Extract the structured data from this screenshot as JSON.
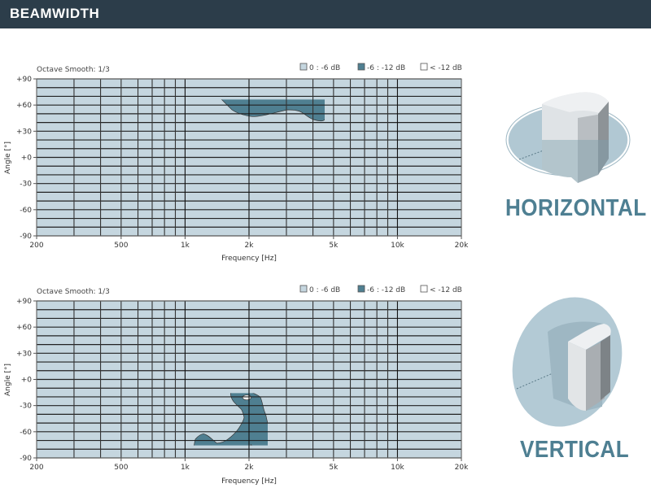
{
  "header": {
    "title": "BEAMWIDTH"
  },
  "colors": {
    "header_bg": "#2c3d4a",
    "level_0_6": "#c5d6df",
    "level_6_12": "#4f7f91",
    "level_below_12": "#ffffff",
    "accent_text": "#4e7f92"
  },
  "chart_data": [
    {
      "type": "heatmap",
      "name": "horizontal",
      "subtitle": "Octave Smooth: 1/3",
      "xlabel": "Frequency [Hz]",
      "ylabel": "Angle [°]",
      "xscale": "log",
      "xlim": [
        200,
        20000
      ],
      "ylim": [
        -90,
        90
      ],
      "x_gridlines": [
        200,
        300,
        400,
        500,
        600,
        700,
        800,
        900,
        1000,
        2000,
        3000,
        4000,
        5000,
        6000,
        7000,
        8000,
        9000,
        10000,
        20000
      ],
      "y_gridlines_step": 10,
      "x_ticks": [
        {
          "value": 200,
          "label": "200"
        },
        {
          "value": 500,
          "label": "500"
        },
        {
          "value": 1000,
          "label": "1k"
        },
        {
          "value": 2000,
          "label": "2k"
        },
        {
          "value": 5000,
          "label": "5k"
        },
        {
          "value": 10000,
          "label": "10k"
        },
        {
          "value": 20000,
          "label": "20k"
        }
      ],
      "y_ticks": [
        {
          "value": 90,
          "label": "+90"
        },
        {
          "value": 60,
          "label": "+60"
        },
        {
          "value": 30,
          "label": "+30"
        },
        {
          "value": 0,
          "label": "+0"
        },
        {
          "value": -30,
          "label": "-30"
        },
        {
          "value": -60,
          "label": "-60"
        },
        {
          "value": -90,
          "label": "-90"
        }
      ],
      "legend": [
        {
          "label": "0 : -6 dB",
          "color": "#c5d6df"
        },
        {
          "label": "-6 : -12 dB",
          "color": "#4f7f91"
        },
        {
          "label": "< -12 dB",
          "color": "#ffffff"
        }
      ],
      "legend_position": "top-right",
      "grid": true
    },
    {
      "type": "heatmap",
      "name": "vertical",
      "subtitle": "Octave Smooth: 1/3",
      "xlabel": "Frequency [Hz]",
      "ylabel": "Angle [°]",
      "xscale": "log",
      "xlim": [
        200,
        20000
      ],
      "ylim": [
        -90,
        90
      ],
      "x_gridlines": [
        200,
        300,
        400,
        500,
        600,
        700,
        800,
        900,
        1000,
        2000,
        3000,
        4000,
        5000,
        6000,
        7000,
        8000,
        9000,
        10000,
        20000
      ],
      "y_gridlines_step": 10,
      "x_ticks": [
        {
          "value": 200,
          "label": "200"
        },
        {
          "value": 500,
          "label": "500"
        },
        {
          "value": 1000,
          "label": "1k"
        },
        {
          "value": 2000,
          "label": "2k"
        },
        {
          "value": 5000,
          "label": "5k"
        },
        {
          "value": 10000,
          "label": "10k"
        },
        {
          "value": 20000,
          "label": "20k"
        }
      ],
      "y_ticks": [
        {
          "value": 90,
          "label": "+90"
        },
        {
          "value": 60,
          "label": "+60"
        },
        {
          "value": 30,
          "label": "+30"
        },
        {
          "value": 0,
          "label": "+0"
        },
        {
          "value": -30,
          "label": "-30"
        },
        {
          "value": -60,
          "label": "-60"
        },
        {
          "value": -90,
          "label": "-90"
        }
      ],
      "legend": [
        {
          "label": "0 : -6 dB",
          "color": "#c5d6df"
        },
        {
          "label": "-6 : -12 dB",
          "color": "#4f7f91"
        },
        {
          "label": "< -12 dB",
          "color": "#ffffff"
        }
      ],
      "legend_position": "top-right",
      "grid": true
    }
  ],
  "side": {
    "horizontal_label": "HORIZONTAL",
    "vertical_label": "VERTICAL"
  }
}
